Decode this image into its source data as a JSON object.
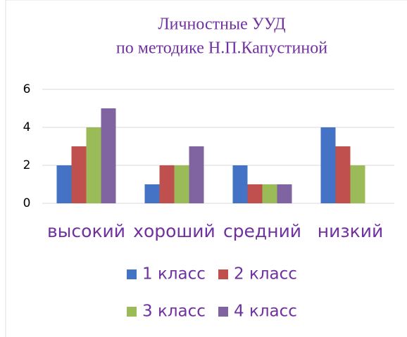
{
  "chart_data": {
    "type": "bar",
    "title": [
      "Личностные УУД",
      "по методике Н.П.Капустиной"
    ],
    "categories": [
      "высокий",
      "хороший",
      "средний",
      "низкий"
    ],
    "series": [
      {
        "name": "1 класс",
        "color": "#4472c4",
        "values": [
          2,
          1,
          2,
          4
        ]
      },
      {
        "name": "2 класс",
        "color": "#c0504d",
        "values": [
          3,
          2,
          1,
          3
        ]
      },
      {
        "name": "3 класс",
        "color": "#9bbb59",
        "values": [
          4,
          2,
          1,
          2
        ]
      },
      {
        "name": "4 класс",
        "color": "#8064a2",
        "values": [
          5,
          3,
          1,
          0
        ]
      }
    ],
    "ylim": [
      0,
      6
    ],
    "yticks": [
      0,
      2,
      4,
      6
    ],
    "grid": true,
    "legend": "bottom"
  }
}
